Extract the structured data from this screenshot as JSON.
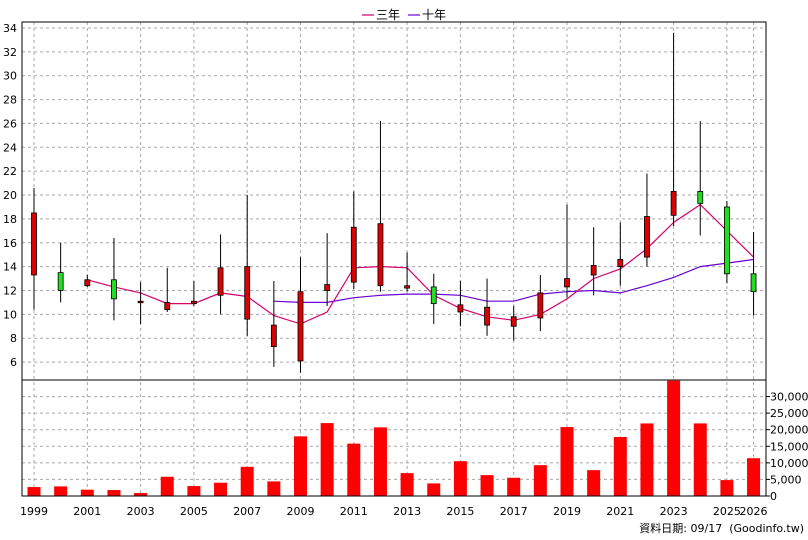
{
  "chart_data": {
    "type": "candlestick",
    "legend": [
      {
        "name": "三年",
        "color": "#d6006f"
      },
      {
        "name": "十年",
        "color": "#6a00d6"
      }
    ],
    "price_axis": {
      "ylim": [
        4.5,
        34.5
      ],
      "ticks": [
        6,
        8,
        10,
        12,
        14,
        16,
        18,
        20,
        22,
        24,
        26,
        28,
        30,
        32,
        34
      ]
    },
    "volume_axis": {
      "ylim": [
        0,
        35000
      ],
      "ticks": [
        "0",
        "5,000",
        "10,000",
        "15,000",
        "20,000",
        "25,000",
        "30,000"
      ],
      "tick_values": [
        0,
        5000,
        10000,
        15000,
        20000,
        25000,
        30000
      ]
    },
    "x_labels": [
      "1999",
      "2001",
      "2003",
      "2005",
      "2007",
      "2009",
      "2011",
      "2013",
      "2015",
      "2017",
      "2019",
      "2021",
      "2023",
      "2025",
      "2026"
    ],
    "x_label_years": [
      1999,
      2001,
      2003,
      2005,
      2007,
      2009,
      2011,
      2013,
      2015,
      2017,
      2019,
      2021,
      2023,
      2025,
      2026
    ],
    "years": [
      1999,
      2000,
      2001,
      2002,
      2003,
      2004,
      2005,
      2006,
      2007,
      2008,
      2009,
      2010,
      2011,
      2012,
      2013,
      2014,
      2015,
      2016,
      2017,
      2018,
      2019,
      2020,
      2021,
      2022,
      2023,
      2024,
      2025,
      2026
    ],
    "ohlc": [
      [
        13.3,
        20.6,
        10.4,
        18.5
      ],
      [
        13.5,
        16.0,
        11.0,
        12.0
      ],
      [
        12.4,
        13.3,
        12.3,
        12.9
      ],
      [
        12.9,
        16.4,
        9.5,
        11.3
      ],
      [
        11.0,
        12.7,
        9.2,
        11.1
      ],
      [
        10.4,
        13.9,
        10.2,
        11.0
      ],
      [
        10.9,
        12.8,
        10.7,
        11.1
      ],
      [
        11.6,
        16.7,
        10.0,
        13.9
      ],
      [
        9.6,
        20.0,
        8.2,
        14.0
      ],
      [
        7.3,
        12.8,
        5.6,
        9.1
      ],
      [
        6.1,
        14.8,
        5.1,
        11.9
      ],
      [
        12.0,
        16.8,
        10.7,
        12.5
      ],
      [
        12.7,
        20.3,
        12.1,
        17.3
      ],
      [
        12.4,
        26.2,
        11.9,
        17.6
      ],
      [
        12.2,
        15.2,
        11.9,
        12.4
      ],
      [
        12.3,
        13.4,
        9.2,
        10.9
      ],
      [
        10.2,
        12.8,
        9.0,
        10.8
      ],
      [
        9.1,
        13.0,
        8.2,
        10.6
      ],
      [
        9.0,
        10.7,
        7.8,
        9.8
      ],
      [
        9.7,
        13.3,
        8.6,
        11.8
      ],
      [
        12.3,
        19.2,
        11.4,
        13.0
      ],
      [
        13.3,
        17.3,
        11.6,
        14.1
      ],
      [
        14.0,
        17.7,
        12.4,
        14.6
      ],
      [
        14.8,
        21.8,
        14.0,
        18.2
      ],
      [
        18.3,
        33.6,
        17.4,
        20.3
      ],
      [
        20.3,
        26.2,
        16.6,
        19.3
      ],
      [
        19.0,
        19.5,
        12.6,
        13.4
      ],
      [
        13.4,
        16.9,
        9.9,
        11.9
      ]
    ],
    "three_year_avg": [
      null,
      null,
      12.9,
      12.3,
      11.8,
      10.9,
      10.9,
      11.8,
      11.5,
      9.9,
      9.2,
      10.2,
      13.9,
      14.0,
      13.9,
      11.6,
      10.5,
      9.8,
      9.5,
      10.0,
      11.3,
      13.0,
      13.8,
      15.5,
      17.7,
      19.2,
      17.0,
      14.8
    ],
    "ten_year_avg": [
      null,
      null,
      null,
      null,
      null,
      null,
      null,
      null,
      null,
      11.1,
      11.0,
      11.0,
      11.4,
      11.6,
      11.7,
      11.7,
      11.6,
      11.1,
      11.1,
      11.7,
      11.9,
      12.0,
      11.8,
      12.4,
      13.1,
      14.0,
      14.3,
      14.6
    ],
    "volume": [
      2700,
      2900,
      1900,
      1800,
      900,
      5800,
      3000,
      4000,
      8800,
      4400,
      18000,
      22000,
      15800,
      20700,
      6900,
      3800,
      10500,
      6300,
      5500,
      9300,
      20800,
      7800,
      17800,
      21900,
      34800,
      21900,
      4800,
      11400
    ],
    "footnote": "資料日期: 09/17  (Goodinfo.tw)",
    "colors": {
      "up": "#dd0000",
      "down": "#22dd22",
      "volume": "#ff0000",
      "grid": "#a8a8a8"
    }
  }
}
